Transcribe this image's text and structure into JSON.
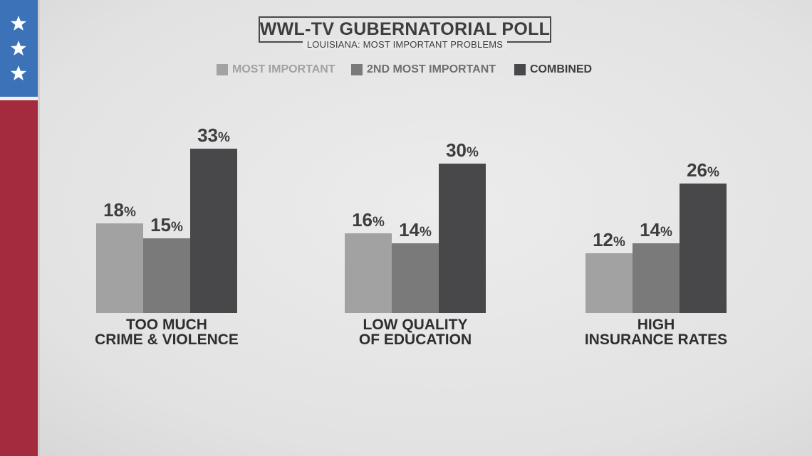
{
  "chart_data": {
    "type": "bar",
    "title": "WWL-TV GUBERNATORIAL POLL",
    "subtitle": "LOUISIANA: MOST IMPORTANT PROBLEMS",
    "categories": [
      [
        "TOO MUCH",
        "CRIME & VIOLENCE"
      ],
      [
        "LOW QUALITY",
        "OF EDUCATION"
      ],
      [
        "HIGH",
        "INSURANCE RATES"
      ]
    ],
    "series": [
      {
        "name": "MOST IMPORTANT",
        "color": "#a2a2a2",
        "values": [
          18,
          16,
          12
        ]
      },
      {
        "name": "2ND MOST IMPORTANT",
        "color": "#7a7a7a",
        "values": [
          15,
          14,
          14
        ]
      },
      {
        "name": "COMBINED",
        "color": "#48484b",
        "values": [
          33,
          30,
          26
        ]
      }
    ],
    "value_suffix": "%",
    "ylim": [
      0,
      33
    ],
    "legend_position": "top-center",
    "grid": false
  },
  "legend": {
    "items": [
      {
        "label": "MOST IMPORTANT",
        "text_color": "#a2a2a2",
        "swatch_color": "#a2a2a2"
      },
      {
        "label": "2ND MOST IMPORTANT",
        "text_color": "#6f6f6f",
        "swatch_color": "#7a7a7a"
      },
      {
        "label": "COMBINED",
        "text_color": "#3d3d40",
        "swatch_color": "#48484b"
      }
    ]
  },
  "flag": {
    "blue": "#3b72b8",
    "red": "#a42b3d",
    "star_icon": "star-icon",
    "star_count": 3
  }
}
